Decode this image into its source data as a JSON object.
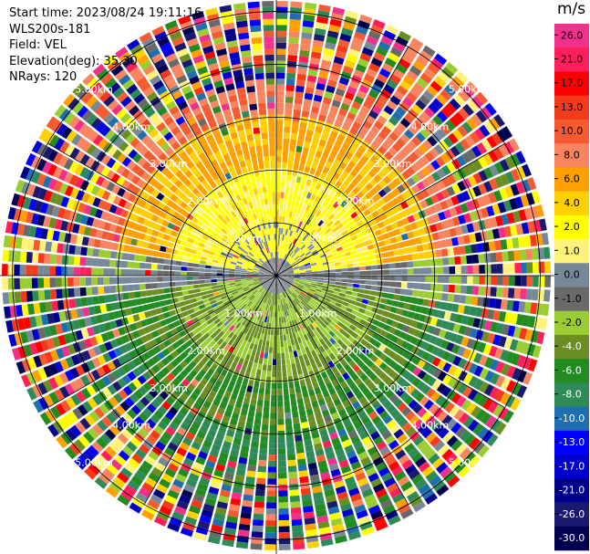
{
  "info": {
    "start_time": "Start time: 2023/08/24 19:11:16",
    "instrument": "WLS200s-181",
    "field": "Field: VEL",
    "elevation": "Elevation(deg): 35.30",
    "nrays": "NRays: 120"
  },
  "chart_data": {
    "type": "heatmap",
    "projection": "polar-ppi",
    "field": "VEL",
    "n_rays": 120,
    "range_rings_km": [
      1.0,
      2.0,
      3.0,
      4.0,
      5.0
    ],
    "max_range_km": 5.2,
    "ring_labels": [
      "1.00km",
      "2.00km",
      "3.00km",
      "4.00km",
      "5.00km"
    ],
    "colorbar": {
      "unit": "m/s",
      "ticks": [
        "26.0",
        "21.0",
        "17.0",
        "13.0",
        "10.0",
        "8.0",
        "6.0",
        "4.0",
        "2.0",
        "1.0",
        "0.0",
        "-1.0",
        "-2.0",
        "-4.0",
        "-6.0",
        "-8.0",
        "-10.0",
        "-13.0",
        "-17.0",
        "-21.0",
        "-26.0",
        "-30.0"
      ],
      "colors": [
        "#f0308a",
        "#ff1f5a",
        "#ff0000",
        "#f33a1a",
        "#f55a30",
        "#f88460",
        "#ffa000",
        "#ffd000",
        "#ffff00",
        "#fff27a",
        "#778899",
        "#696969",
        "#9acd32",
        "#6b8e23",
        "#228b22",
        "#2e8b57",
        "#1e6fb0",
        "#0000ff",
        "#0000cd",
        "#00008b",
        "#191970",
        "#000050"
      ]
    }
  }
}
